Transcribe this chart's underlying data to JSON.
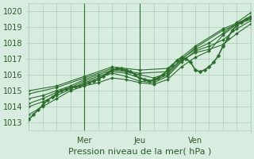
{
  "title": "",
  "xlabel": "Pression niveau de la mer( hPa )",
  "ylabel": "",
  "ylim": [
    1012.5,
    1020.5
  ],
  "xlim": [
    0,
    96
  ],
  "yticks": [
    1013,
    1014,
    1015,
    1016,
    1017,
    1018,
    1019,
    1020
  ],
  "xtick_positions": [
    24,
    48,
    72,
    96
  ],
  "xtick_labels": [
    "Mer",
    "Jeu",
    "Ven",
    ""
  ],
  "vlines": [
    24,
    48,
    96
  ],
  "bg_color": "#d8ede0",
  "grid_color": "#aaccbb",
  "line_color": "#2d6e2d",
  "line_color2": "#4a9a4a",
  "series": [
    [
      0,
      1013.2,
      2,
      1013.5,
      4,
      1013.8,
      6,
      1014.1,
      8,
      1014.4,
      10,
      1014.6,
      12,
      1014.8,
      14,
      1015.0,
      16,
      1015.1,
      18,
      1015.2,
      20,
      1015.25,
      22,
      1015.3,
      24,
      1015.4,
      26,
      1015.5,
      28,
      1015.6,
      30,
      1015.7,
      32,
      1015.9,
      34,
      1016.1,
      36,
      1016.3,
      38,
      1016.4,
      40,
      1016.4,
      42,
      1016.3,
      44,
      1016.2,
      46,
      1016.0,
      48,
      1015.8,
      50,
      1015.7,
      52,
      1015.6,
      54,
      1015.7,
      56,
      1015.8,
      58,
      1016.0,
      60,
      1016.3,
      62,
      1016.6,
      64,
      1016.9,
      66,
      1017.1,
      68,
      1017.0,
      70,
      1016.8,
      72,
      1016.3,
      74,
      1016.2,
      76,
      1016.3,
      78,
      1016.5,
      80,
      1016.8,
      82,
      1017.2,
      84,
      1017.8,
      86,
      1018.3,
      88,
      1018.8,
      90,
      1019.1,
      92,
      1019.3,
      94,
      1019.5,
      96,
      1019.6
    ],
    [
      0,
      1013.5,
      6,
      1014.0,
      12,
      1014.5,
      18,
      1015.0,
      24,
      1015.3,
      30,
      1015.5,
      36,
      1015.8,
      42,
      1015.7,
      48,
      1015.5,
      54,
      1015.4,
      60,
      1015.7,
      66,
      1016.5,
      72,
      1017.1,
      78,
      1017.5,
      84,
      1018.5,
      90,
      1019.2,
      96,
      1019.7
    ],
    [
      0,
      1014.0,
      6,
      1014.3,
      12,
      1014.7,
      18,
      1015.1,
      24,
      1015.5,
      30,
      1015.8,
      36,
      1016.1,
      42,
      1015.9,
      48,
      1015.6,
      54,
      1015.5,
      60,
      1015.9,
      66,
      1016.8,
      72,
      1017.5,
      78,
      1017.8,
      84,
      1018.2,
      90,
      1018.9,
      96,
      1019.4
    ],
    [
      0,
      1014.2,
      6,
      1014.5,
      12,
      1014.9,
      18,
      1015.2,
      24,
      1015.6,
      30,
      1015.9,
      36,
      1016.2,
      42,
      1016.1,
      48,
      1015.8,
      54,
      1015.6,
      60,
      1016.0,
      66,
      1016.9,
      72,
      1017.4,
      78,
      1017.6,
      84,
      1017.9,
      90,
      1018.6,
      96,
      1019.2
    ],
    [
      0,
      1014.5,
      6,
      1014.7,
      12,
      1015.0,
      18,
      1015.3,
      24,
      1015.7,
      30,
      1016.0,
      36,
      1016.3,
      42,
      1016.2,
      48,
      1016.0,
      54,
      1015.8,
      60,
      1016.1,
      66,
      1017.0,
      72,
      1017.6,
      78,
      1018.0,
      84,
      1018.6,
      90,
      1019.3,
      96,
      1019.9
    ],
    [
      0,
      1014.8,
      12,
      1015.2,
      24,
      1015.8,
      36,
      1016.4,
      48,
      1016.1,
      60,
      1016.2,
      72,
      1017.7,
      84,
      1018.8,
      96,
      1019.5
    ],
    [
      0,
      1015.0,
      12,
      1015.3,
      24,
      1015.9,
      36,
      1016.5,
      48,
      1016.3,
      60,
      1016.4,
      72,
      1017.8,
      84,
      1018.9,
      96,
      1019.6
    ]
  ],
  "main_series_x": [
    0,
    2,
    4,
    6,
    8,
    10,
    12,
    14,
    16,
    18,
    20,
    22,
    24,
    26,
    28,
    30,
    32,
    34,
    36,
    38,
    40,
    42,
    44,
    46,
    48,
    50,
    52,
    54,
    56,
    58,
    60,
    62,
    64,
    66,
    68,
    70,
    72,
    74,
    76,
    78,
    80,
    82,
    84,
    86,
    88,
    90,
    92,
    94,
    96
  ],
  "main_series_y": [
    1013.2,
    1013.5,
    1013.8,
    1014.1,
    1014.4,
    1014.6,
    1014.8,
    1015.0,
    1015.1,
    1015.2,
    1015.25,
    1015.3,
    1015.4,
    1015.5,
    1015.6,
    1015.7,
    1015.9,
    1016.1,
    1016.3,
    1016.4,
    1016.4,
    1016.3,
    1016.2,
    1016.0,
    1015.8,
    1015.7,
    1015.6,
    1015.7,
    1015.8,
    1016.0,
    1016.3,
    1016.6,
    1016.9,
    1017.1,
    1017.0,
    1016.8,
    1016.3,
    1016.2,
    1016.3,
    1016.5,
    1016.8,
    1017.2,
    1017.8,
    1018.3,
    1018.8,
    1019.1,
    1019.3,
    1019.5,
    1019.6
  ]
}
